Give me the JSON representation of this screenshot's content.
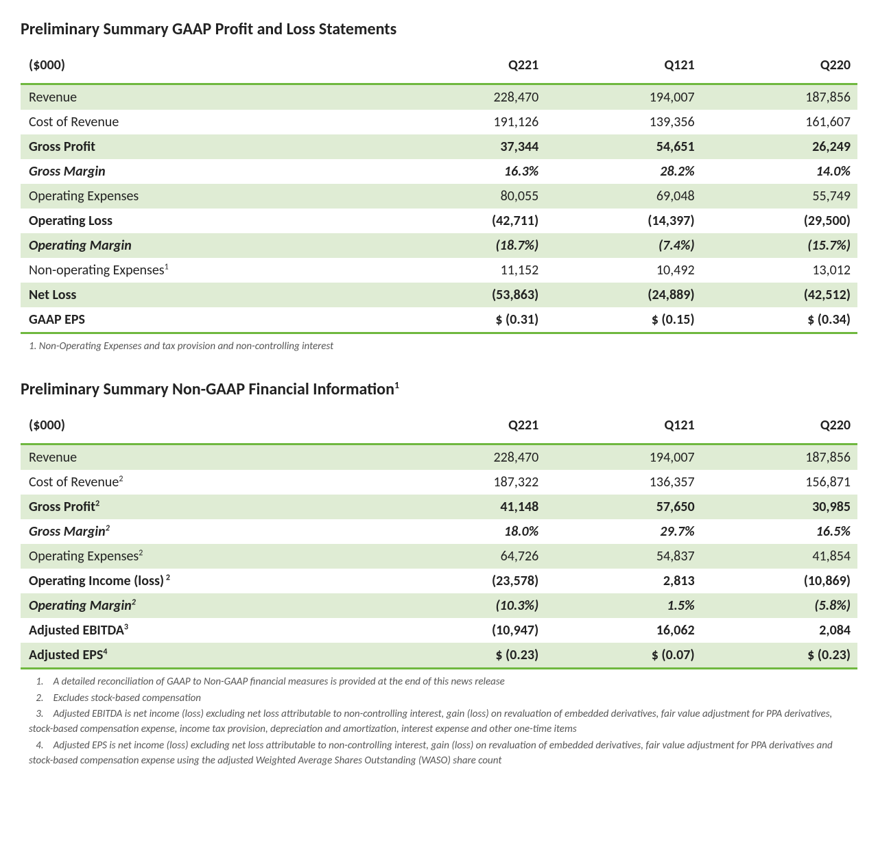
{
  "colors": {
    "accent_border": "#6fb83f",
    "row_shade": "#dfecd4",
    "row_plain": "#ffffff",
    "text": "#222222",
    "footnote_text": "#555555",
    "background": "#ffffff"
  },
  "typography": {
    "title_fontsize": 24,
    "body_fontsize": 20,
    "footnote_fontsize": 15,
    "font_family": "Calibri"
  },
  "layout": {
    "columns": [
      {
        "key": "label",
        "width": "44%",
        "align": "left"
      },
      {
        "key": "c1",
        "width": "18.6%",
        "align": "right"
      },
      {
        "key": "c2",
        "width": "18.6%",
        "align": "right"
      },
      {
        "key": "c3",
        "width": "18.6%",
        "align": "right"
      }
    ]
  },
  "tables": [
    {
      "title": "Preliminary Summary GAAP Profit and Loss Statements",
      "title_sup": "",
      "header": {
        "label": "($000)",
        "c1": "Q221",
        "c2": "Q121",
        "c3": "Q220"
      },
      "rows": [
        {
          "label": "Revenue",
          "sup": "",
          "c1": "228,470",
          "c2": "194,007",
          "c3": "187,856",
          "shaded": true,
          "bold": false,
          "italic": false
        },
        {
          "label": "Cost of Revenue",
          "sup": "",
          "c1": "191,126",
          "c2": "139,356",
          "c3": "161,607",
          "shaded": false,
          "bold": false,
          "italic": false
        },
        {
          "label": "Gross Profit",
          "sup": "",
          "c1": "37,344",
          "c2": "54,651",
          "c3": "26,249",
          "shaded": true,
          "bold": true,
          "italic": false
        },
        {
          "label": "Gross Margin",
          "sup": "",
          "c1": "16.3%",
          "c2": "28.2%",
          "c3": "14.0%",
          "shaded": false,
          "bold": true,
          "italic": true
        },
        {
          "label": "Operating Expenses",
          "sup": "",
          "c1": "80,055",
          "c2": "69,048",
          "c3": "55,749",
          "shaded": true,
          "bold": false,
          "italic": false
        },
        {
          "label": "Operating Loss",
          "sup": "",
          "c1": "(42,711)",
          "c2": "(14,397)",
          "c3": "(29,500)",
          "shaded": false,
          "bold": true,
          "italic": false
        },
        {
          "label": "Operating Margin",
          "sup": "",
          "c1": "(18.7%)",
          "c2": "(7.4%)",
          "c3": "(15.7%)",
          "shaded": true,
          "bold": true,
          "italic": true
        },
        {
          "label": "Non-operating Expenses",
          "sup": "1",
          "c1": "11,152",
          "c2": "10,492",
          "c3": "13,012",
          "shaded": false,
          "bold": false,
          "italic": false
        },
        {
          "label": "Net Loss",
          "sup": "",
          "c1": "(53,863)",
          "c2": "(24,889)",
          "c3": "(42,512)",
          "shaded": true,
          "bold": true,
          "italic": false
        },
        {
          "label": "GAAP EPS",
          "sup": "",
          "c1": "$ (0.31)",
          "c2": "$ (0.15)",
          "c3": "$ (0.34)",
          "shaded": false,
          "bold": true,
          "italic": false
        }
      ],
      "footnotes": [
        {
          "num": "1.",
          "text": "Non-Operating Expenses and tax provision and non-controlling interest",
          "indent": false
        }
      ]
    },
    {
      "title": "Preliminary Summary Non-GAAP Financial Information",
      "title_sup": "1",
      "header": {
        "label": "($000)",
        "c1": "Q221",
        "c2": "Q121",
        "c3": "Q220"
      },
      "rows": [
        {
          "label": "Revenue",
          "sup": "",
          "c1": "228,470",
          "c2": "194,007",
          "c3": "187,856",
          "shaded": true,
          "bold": false,
          "italic": false
        },
        {
          "label": "Cost of Revenue",
          "sup": "2",
          "c1": "187,322",
          "c2": "136,357",
          "c3": "156,871",
          "shaded": false,
          "bold": false,
          "italic": false
        },
        {
          "label": "Gross Profit",
          "sup": "2",
          "c1": "41,148",
          "c2": "57,650",
          "c3": "30,985",
          "shaded": true,
          "bold": true,
          "italic": false
        },
        {
          "label": "Gross Margin",
          "sup": "2",
          "c1": "18.0%",
          "c2": "29.7%",
          "c3": "16.5%",
          "shaded": false,
          "bold": true,
          "italic": true
        },
        {
          "label": "Operating Expenses",
          "sup": "2",
          "c1": "64,726",
          "c2": "54,837",
          "c3": "41,854",
          "shaded": true,
          "bold": false,
          "italic": false
        },
        {
          "label": "Operating Income (loss)",
          "sup": " 2",
          "c1": "(23,578)",
          "c2": "2,813",
          "c3": "(10,869)",
          "shaded": false,
          "bold": true,
          "italic": false
        },
        {
          "label": "Operating Margin",
          "sup": "2",
          "c1": "(10.3%)",
          "c2": "1.5%",
          "c3": "(5.8%)",
          "shaded": true,
          "bold": true,
          "italic": true
        },
        {
          "label": "Adjusted EBITDA",
          "sup": "3",
          "c1": "(10,947)",
          "c2": "16,062",
          "c3": "2,084",
          "shaded": false,
          "bold": true,
          "italic": false
        },
        {
          "label": "Adjusted EPS",
          "sup": "4",
          "c1": "$ (0.23)",
          "c2": "$ (0.07)",
          "c3": "$ (0.23)",
          "shaded": true,
          "bold": true,
          "italic": false
        }
      ],
      "footnotes": [
        {
          "num": "1.",
          "text": "A detailed reconciliation of GAAP to Non-GAAP financial measures is provided at the end of this news release",
          "indent": true
        },
        {
          "num": "2.",
          "text": "Excludes stock-based compensation",
          "indent": true
        },
        {
          "num": "3.",
          "text": "Adjusted EBITDA is net income (loss) excluding net loss attributable to non-controlling interest, gain (loss) on revaluation of embedded derivatives, fair value adjustment for PPA derivatives, stock-based compensation expense, income tax provision, depreciation and amortization, interest expense and other one-time items",
          "indent": true
        },
        {
          "num": "4.",
          "text": "Adjusted EPS is net income (loss) excluding net loss attributable to non-controlling interest, gain (loss) on revaluation of embedded derivatives, fair value adjustment for PPA derivatives and stock-based compensation expense using the adjusted Weighted Average Shares Outstanding (WASO) share count",
          "indent": true
        }
      ]
    }
  ]
}
